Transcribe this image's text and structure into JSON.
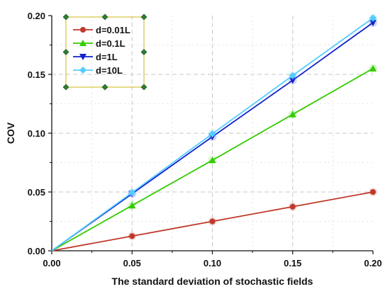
{
  "chart_data": {
    "type": "line",
    "xlabel": "The standard deviation of stochastic fields",
    "ylabel": "COV",
    "xlim": [
      0,
      0.2
    ],
    "ylim": [
      0,
      0.2
    ],
    "x_ticks": [
      "0.00",
      "0.05",
      "0.10",
      "0.15",
      "0.20"
    ],
    "y_ticks": [
      "0.00",
      "0.05",
      "0.10",
      "0.15",
      "0.20"
    ],
    "grid": "dashed, both axes",
    "legend_position": "top-left",
    "x": [
      0,
      0.05,
      0.1,
      0.15,
      0.2
    ],
    "series": [
      {
        "name": "d=0.01L",
        "values": [
          0,
          0.0125,
          0.025,
          0.0375,
          0.05
        ],
        "color": "#c0392b",
        "marker": "circle"
      },
      {
        "name": "d=0.1L",
        "values": [
          0,
          0.0385,
          0.077,
          0.116,
          0.155
        ],
        "color": "#33cc00",
        "marker": "triangle-up"
      },
      {
        "name": "d=1L",
        "values": [
          0,
          0.0485,
          0.097,
          0.145,
          0.194
        ],
        "color": "#1022cc",
        "marker": "triangle-down"
      },
      {
        "name": "d=10L",
        "values": [
          0,
          0.0495,
          0.0995,
          0.149,
          0.198
        ],
        "color": "#55ccff",
        "marker": "diamond"
      }
    ]
  }
}
